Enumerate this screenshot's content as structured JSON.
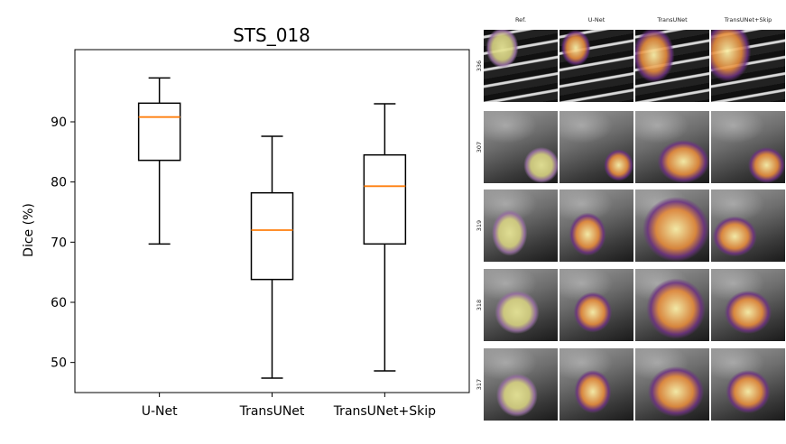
{
  "chart_data": {
    "type": "box",
    "title": "STS_018",
    "ylabel": "Dice (%)",
    "xlabel": "",
    "ylim": [
      45,
      102
    ],
    "yticks": [
      50,
      60,
      70,
      80,
      90
    ],
    "grid": false,
    "categories": [
      "U-Net",
      "TransUNet",
      "TransUNet+Skip"
    ],
    "boxes": [
      {
        "category": "U-Net",
        "whisker_low": 69.7,
        "q1": 83.6,
        "median": 90.8,
        "q3": 93.1,
        "whisker_high": 97.3
      },
      {
        "category": "TransUNet",
        "whisker_low": 47.4,
        "q1": 63.8,
        "median": 72.0,
        "q3": 78.2,
        "whisker_high": 87.6
      },
      {
        "category": "TransUNet+Skip",
        "whisker_low": 48.6,
        "q1": 69.7,
        "median": 79.3,
        "q3": 84.5,
        "whisker_high": 93.0
      }
    ],
    "median_color": "#ff7f0e",
    "box_color": "#000000"
  },
  "image_grid": {
    "columns": [
      "Ref.",
      "U-Net",
      "TransUNet",
      "TransUNet+Skip"
    ],
    "rows": [
      "336",
      "307",
      "319",
      "318",
      "317"
    ],
    "overlay_color_low": "#5a2d82",
    "overlay_color_high": "#f5f0a0"
  }
}
